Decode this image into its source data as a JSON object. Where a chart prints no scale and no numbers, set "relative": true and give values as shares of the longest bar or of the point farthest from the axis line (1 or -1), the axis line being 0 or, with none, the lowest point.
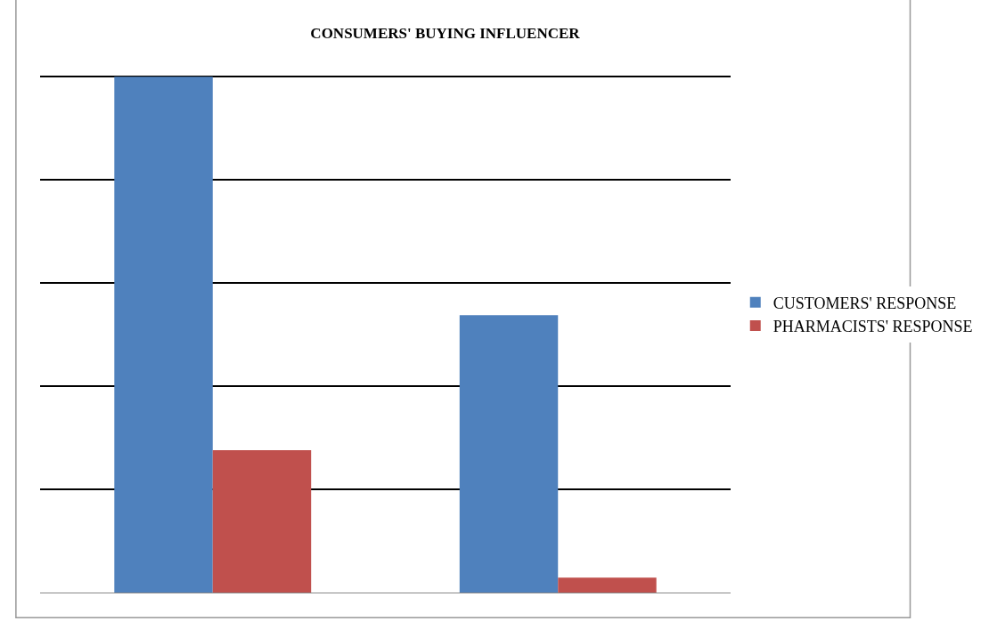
{
  "chart_data": {
    "type": "bar",
    "title": "CONSUMERS' BUYING INFLUENCER",
    "categories": [
      null,
      null
    ],
    "relative": true,
    "grid": "y",
    "legend": "right",
    "series": [
      {
        "name": "CUSTOMERS' RESPONSE",
        "color": "#4f81bd",
        "values": [
          1,
          0.538
        ]
      },
      {
        "name": "PHARMACISTS' RESPONSE",
        "color": "#c0504d",
        "values": [
          0.276,
          0.029
        ]
      }
    ]
  }
}
